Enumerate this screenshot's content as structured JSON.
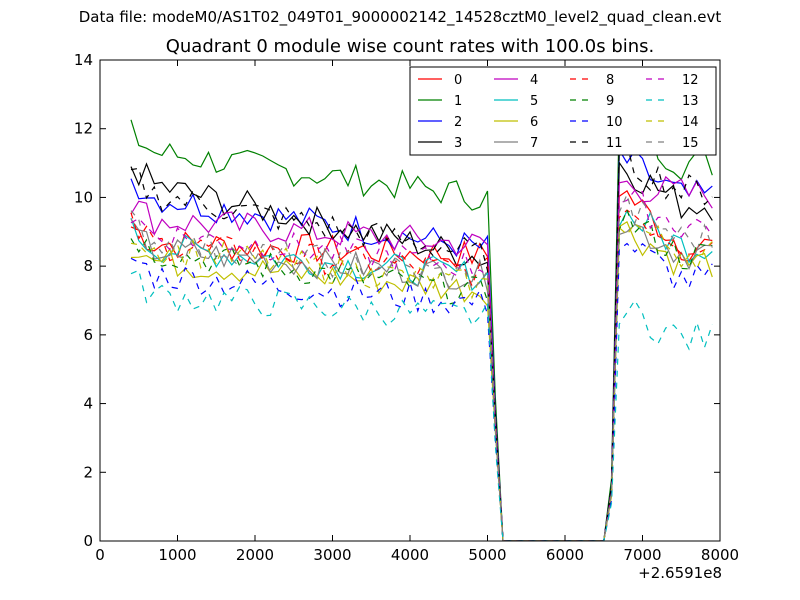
{
  "supertitle": "Data file: modeM0/AS1T02_049T01_9000002142_14528cztM0_level2_quad_clean.evt",
  "chart_data": {
    "type": "line",
    "title": "Quadrant 0 module wise count rates with 100.0s bins.",
    "xlabel": "",
    "ylabel": "",
    "x_offset_label": "+2.6591e8",
    "xlim": [
      0,
      8000
    ],
    "ylim": [
      0,
      14
    ],
    "xticks": [
      0,
      1000,
      2000,
      3000,
      4000,
      5000,
      6000,
      7000,
      8000
    ],
    "yticks": [
      0,
      2,
      4,
      6,
      8,
      10,
      12,
      14
    ],
    "legend_position": "top-right",
    "legend_columns": 4,
    "x_segment1": [
      400,
      500,
      600,
      700,
      800,
      900,
      1000,
      1100,
      1200,
      1300,
      1400,
      1500,
      1600,
      1700,
      1800,
      1900,
      2000,
      2100,
      2200,
      2300,
      2400,
      2500,
      2600,
      2700,
      2800,
      2900,
      3000,
      3100,
      3200,
      3300,
      3400,
      3500,
      3600,
      3700,
      3800,
      3900,
      4000,
      4100,
      4200,
      4300,
      4400,
      4500,
      4600,
      4700,
      4800,
      4900,
      5000
    ],
    "gap_x": [
      5100,
      5200,
      6500,
      6600
    ],
    "x_segment2": [
      6700,
      6800,
      6900,
      7000,
      7100,
      7200,
      7300,
      7400,
      7500,
      7600,
      7700,
      7800,
      7900
    ],
    "series": [
      {
        "name": "0",
        "color": "#ff0000",
        "dash": "solid",
        "base": 8.7,
        "end": 8.3,
        "gap": [
          3.5,
          0,
          0,
          1.4
        ],
        "peak": 10.3,
        "post": 8.6
      },
      {
        "name": "1",
        "color": "#008000",
        "dash": "solid",
        "base": 11.4,
        "end": 10.0,
        "gap": [
          4.2,
          0,
          0,
          1.8
        ],
        "peak": 12.2,
        "post": 11.0
      },
      {
        "name": "2",
        "color": "#0000ff",
        "dash": "solid",
        "base": 10.1,
        "end": 8.5,
        "gap": [
          3.8,
          0,
          0,
          1.6
        ],
        "peak": 11.2,
        "post": 10.0
      },
      {
        "name": "3",
        "color": "#000000",
        "dash": "solid",
        "base": 10.5,
        "end": 8.2,
        "gap": [
          3.7,
          0,
          0,
          1.6
        ],
        "peak": 11.0,
        "post": 9.8
      },
      {
        "name": "4",
        "color": "#bf00bf",
        "dash": "solid",
        "base": 9.4,
        "end": 8.6,
        "gap": [
          3.6,
          0,
          0,
          1.5
        ],
        "peak": 10.4,
        "post": 10.1
      },
      {
        "name": "5",
        "color": "#00bfbf",
        "dash": "solid",
        "base": 8.6,
        "end": 7.7,
        "gap": [
          3.3,
          0,
          0,
          1.4
        ],
        "peak": 9.6,
        "post": 8.6
      },
      {
        "name": "6",
        "color": "#bfbf00",
        "dash": "solid",
        "base": 8.2,
        "end": 7.3,
        "gap": [
          3.2,
          0,
          0,
          1.3
        ],
        "peak": 9.2,
        "post": 8.1
      },
      {
        "name": "7",
        "color": "#808080",
        "dash": "solid",
        "base": 8.5,
        "end": 7.7,
        "gap": [
          3.3,
          0,
          0,
          1.4
        ],
        "peak": 9.4,
        "post": 8.4
      },
      {
        "name": "8",
        "color": "#ff0000",
        "dash": "dash",
        "base": 8.7,
        "end": 7.8,
        "gap": [
          3.4,
          0,
          0,
          1.4
        ],
        "peak": 9.8,
        "post": 8.7
      },
      {
        "name": "9",
        "color": "#008000",
        "dash": "dash",
        "base": 8.5,
        "end": 7.2,
        "gap": [
          3.2,
          0,
          0,
          1.3
        ],
        "peak": 9.5,
        "post": 8.3
      },
      {
        "name": "10",
        "color": "#0000ff",
        "dash": "dash",
        "base": 7.8,
        "end": 6.9,
        "gap": [
          3.0,
          0,
          0,
          1.2
        ],
        "peak": 8.8,
        "post": 7.6
      },
      {
        "name": "11",
        "color": "#000000",
        "dash": "dash",
        "base": 10.2,
        "end": 8.3,
        "gap": [
          3.7,
          0,
          0,
          1.6
        ],
        "peak": 11.2,
        "post": 10.2
      },
      {
        "name": "12",
        "color": "#bf00bf",
        "dash": "dash",
        "base": 9.0,
        "end": 8.0,
        "gap": [
          3.4,
          0,
          0,
          1.4
        ],
        "peak": 10.0,
        "post": 9.2
      },
      {
        "name": "13",
        "color": "#00bfbf",
        "dash": "dash",
        "base": 7.2,
        "end": 6.5,
        "gap": [
          2.8,
          0,
          0,
          1.1
        ],
        "peak": 6.8,
        "post": 5.9
      },
      {
        "name": "14",
        "color": "#bfbf00",
        "dash": "dash",
        "base": 8.6,
        "end": 7.4,
        "gap": [
          3.3,
          0,
          0,
          1.4
        ],
        "peak": 9.4,
        "post": 8.4
      },
      {
        "name": "15",
        "color": "#808080",
        "dash": "dash",
        "base": 8.8,
        "end": 7.6,
        "gap": [
          3.3,
          0,
          0,
          1.4
        ],
        "peak": 9.8,
        "post": 8.8
      }
    ]
  }
}
